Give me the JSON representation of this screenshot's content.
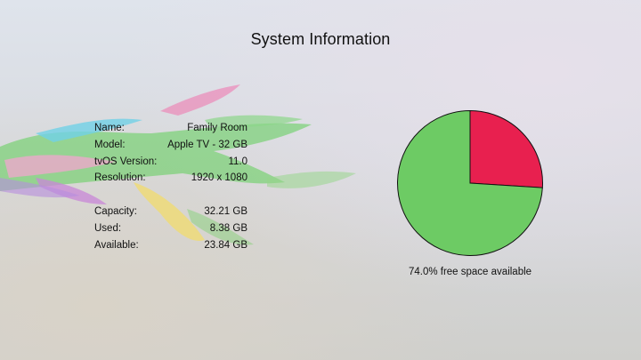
{
  "window": {
    "title": "System Information"
  },
  "device_info": [
    {
      "label": "Name:",
      "value": "Family Room"
    },
    {
      "label": "Model:",
      "value": "Apple TV - 32 GB"
    },
    {
      "label": "tvOS Version:",
      "value": "11.0"
    },
    {
      "label": "Resolution:",
      "value": "1920 x 1080"
    }
  ],
  "storage_info": [
    {
      "label": "Capacity:",
      "value": "32.21 GB"
    },
    {
      "label": "Used:",
      "value": "8.38 GB"
    },
    {
      "label": "Available:",
      "value": "23.84 GB"
    }
  ],
  "chart_data": {
    "type": "pie",
    "slices": [
      {
        "label": "Used",
        "value": 8.38,
        "color": "#e8204f"
      },
      {
        "label": "Available",
        "value": 23.84,
        "color": "#6dcb64"
      }
    ],
    "start_angle_deg": 0,
    "outline_color": "#111111"
  },
  "caption": "74.0% free space available"
}
